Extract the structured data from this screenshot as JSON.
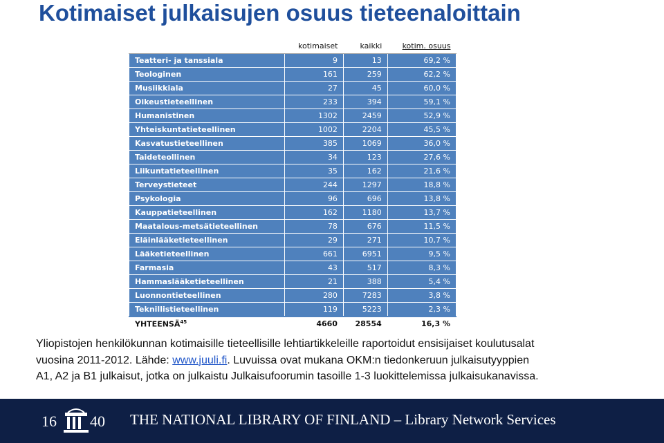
{
  "title": "Kotimaiset julkaisujen osuus tieteenaloittain",
  "table": {
    "header": [
      "kotimaiset",
      "kaikki",
      "kotim. osuus"
    ],
    "rows": [
      [
        "Teatteri- ja tanssiala",
        "9",
        "13",
        "69,2 %"
      ],
      [
        "Teologinen",
        "161",
        "259",
        "62,2 %"
      ],
      [
        "Musiikkiala",
        "27",
        "45",
        "60,0 %"
      ],
      [
        "Oikeustieteellinen",
        "233",
        "394",
        "59,1 %"
      ],
      [
        "Humanistinen",
        "1302",
        "2459",
        "52,9 %"
      ],
      [
        "Yhteiskuntatieteellinen",
        "1002",
        "2204",
        "45,5 %"
      ],
      [
        "Kasvatustieteellinen",
        "385",
        "1069",
        "36,0 %"
      ],
      [
        "Taideteollinen",
        "34",
        "123",
        "27,6 %"
      ],
      [
        "Liikuntatieteellinen",
        "35",
        "162",
        "21,6 %"
      ],
      [
        "Terveystieteet",
        "244",
        "1297",
        "18,8 %"
      ],
      [
        "Psykologia",
        "96",
        "696",
        "13,8 %"
      ],
      [
        "Kauppatieteellinen",
        "162",
        "1180",
        "13,7 %"
      ],
      [
        "Maatalous-metsätieteellinen",
        "78",
        "676",
        "11,5 %"
      ],
      [
        "Eläinlääketieteellinen",
        "29",
        "271",
        "10,7 %"
      ],
      [
        "Lääketieteellinen",
        "661",
        "6951",
        "9,5 %"
      ],
      [
        "Farmasia",
        "43",
        "517",
        "8,3 %"
      ],
      [
        "Hammaslääketieteellinen",
        "21",
        "388",
        "5,4 %"
      ],
      [
        "Luonnontieteellinen",
        "280",
        "7283",
        "3,8 %"
      ],
      [
        "Teknillistieteellinen",
        "119",
        "5223",
        "2,3 %"
      ]
    ],
    "total": {
      "label": "YHTEENSÄ",
      "note": "45",
      "values": [
        "4660",
        "28554",
        "16,3 %"
      ]
    }
  },
  "caption": {
    "line1": "Yliopistojen henkilökunnan kotimaisille tieteellisille lehtiartikkeleille raportoidut ensisijaiset koulutusalat",
    "line2_start": "vuosina 2011-2012. Lähde: ",
    "link": "www.juuli.fi",
    "line2_end": ". Luvuissa ovat mukana OKM:n tiedonkeruun julkaisutyyppien",
    "line3": "A1, A2 ja B1 julkaisut, jotka on julkaistu Julkaisufoorumin tasoille 1-3 luokittelemissa julkaisukanavissa."
  },
  "footer": {
    "logo": [
      "16",
      "40"
    ],
    "text": "THE NATIONAL LIBRARY OF FINLAND – Library Network Services"
  }
}
